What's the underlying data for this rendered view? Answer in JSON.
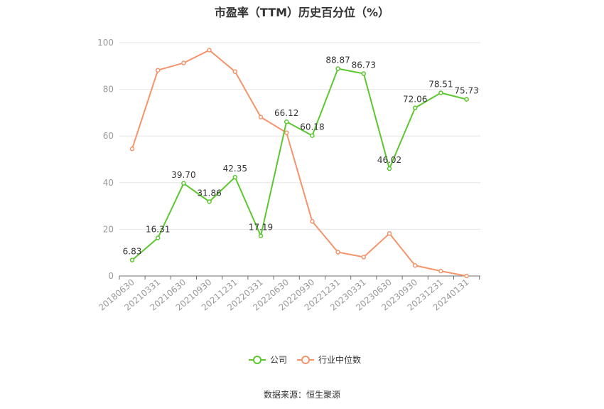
{
  "chart_data": {
    "type": "line",
    "title": "市盈率（TTM）历史百分位（%）",
    "x": [
      "20180630",
      "20210331",
      "20210630",
      "20210930",
      "20211231",
      "20220331",
      "20220630",
      "20220930",
      "20221231",
      "20230331",
      "20230630",
      "20230930",
      "20231231",
      "20240131"
    ],
    "ylim": [
      0,
      100
    ],
    "yticks": [
      0,
      20,
      40,
      60,
      80,
      100
    ],
    "grid": true,
    "legend_position": "bottom",
    "series": [
      {
        "name": "公司",
        "color": "#5cc72f",
        "show_labels": true,
        "values": [
          6.83,
          16.31,
          39.7,
          31.86,
          42.35,
          17.19,
          66.12,
          60.18,
          88.87,
          86.73,
          46.02,
          72.06,
          78.51,
          75.73
        ]
      },
      {
        "name": "行业中位数",
        "color": "#f5936b",
        "show_labels": false,
        "values": [
          54.5,
          88.2,
          91.3,
          96.8,
          87.6,
          68.1,
          61.4,
          23.4,
          10.2,
          8.1,
          18.2,
          4.5,
          2.1,
          0.0
        ]
      }
    ]
  },
  "source": "数据来源：恒生聚源"
}
